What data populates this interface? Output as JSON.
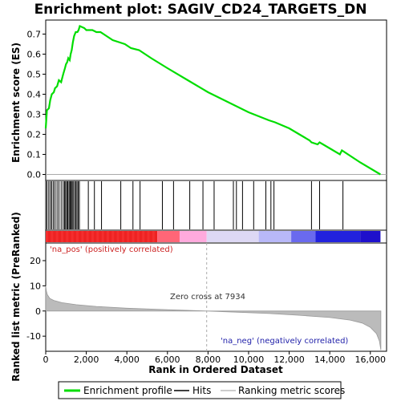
{
  "chart_data": [
    {
      "type": "line",
      "title": "Enrichment plot: SAGIV_CD24_TARGETS_DN",
      "ylabel": "Enrichment score (ES)",
      "ylim": [
        -0.03,
        0.77
      ],
      "yticks": [
        "0.0",
        "0.1",
        "0.2",
        "0.3",
        "0.4",
        "0.5",
        "0.6",
        "0.7"
      ],
      "series": [
        {
          "name": "Enrichment profile",
          "color": "#00dd00",
          "points": [
            [
              0,
              0.23
            ],
            [
              60,
              0.32
            ],
            [
              160,
              0.33
            ],
            [
              220,
              0.37
            ],
            [
              300,
              0.4
            ],
            [
              400,
              0.41
            ],
            [
              460,
              0.43
            ],
            [
              560,
              0.44
            ],
            [
              650,
              0.47
            ],
            [
              760,
              0.46
            ],
            [
              860,
              0.5
            ],
            [
              950,
              0.53
            ],
            [
              1000,
              0.55
            ],
            [
              1060,
              0.56
            ],
            [
              1110,
              0.58
            ],
            [
              1180,
              0.57
            ],
            [
              1230,
              0.6
            ],
            [
              1280,
              0.62
            ],
            [
              1340,
              0.66
            ],
            [
              1400,
              0.69
            ],
            [
              1480,
              0.71
            ],
            [
              1560,
              0.71
            ],
            [
              1620,
              0.72
            ],
            [
              1680,
              0.74
            ],
            [
              1900,
              0.73
            ],
            [
              2000,
              0.72
            ],
            [
              2150,
              0.72
            ],
            [
              2300,
              0.72
            ],
            [
              2500,
              0.71
            ],
            [
              2700,
              0.71
            ],
            [
              3000,
              0.69
            ],
            [
              3300,
              0.67
            ],
            [
              3600,
              0.66
            ],
            [
              3900,
              0.65
            ],
            [
              4200,
              0.63
            ],
            [
              4600,
              0.62
            ],
            [
              5200,
              0.58
            ],
            [
              6000,
              0.53
            ],
            [
              7000,
              0.47
            ],
            [
              8000,
              0.41
            ],
            [
              9000,
              0.36
            ],
            [
              10000,
              0.31
            ],
            [
              11000,
              0.27
            ],
            [
              11300,
              0.26
            ],
            [
              12000,
              0.23
            ],
            [
              12500,
              0.2
            ],
            [
              13000,
              0.17
            ],
            [
              13100,
              0.16
            ],
            [
              13400,
              0.15
            ],
            [
              13500,
              0.16
            ],
            [
              14000,
              0.13
            ],
            [
              14500,
              0.1
            ],
            [
              14600,
              0.12
            ],
            [
              15500,
              0.06
            ],
            [
              16500,
              0.0
            ]
          ]
        }
      ],
      "hits": [
        60,
        150,
        230,
        300,
        380,
        460,
        560,
        650,
        760,
        860,
        930,
        980,
        1040,
        1090,
        1150,
        1200,
        1250,
        1300,
        1350,
        1420,
        1480,
        1540,
        1600,
        1660,
        2100,
        2400,
        2750,
        3700,
        4300,
        4650,
        5750,
        6300,
        7100,
        7750,
        8300,
        9250,
        9400,
        9700,
        10250,
        10850,
        11100,
        11250,
        13100,
        13500,
        14650
      ]
    },
    {
      "type": "area",
      "ylabel": "Ranked list metric (PreRanked)",
      "xlabel": "Rank in Ordered Dataset",
      "xlim": [
        0,
        16800
      ],
      "ylim": [
        -16,
        27
      ],
      "yticks": [
        "20",
        "10",
        "0",
        "-10"
      ],
      "xticks": [
        "0",
        "2,000",
        "4,000",
        "6,000",
        "8,000",
        "10,000",
        "12,000",
        "14,000",
        "16,000"
      ],
      "metric_points": [
        [
          0,
          10
        ],
        [
          30,
          8
        ],
        [
          80,
          6.5
        ],
        [
          200,
          5
        ],
        [
          400,
          4.2
        ],
        [
          800,
          3.3
        ],
        [
          1500,
          2.5
        ],
        [
          2500,
          1.8
        ],
        [
          4000,
          1.1
        ],
        [
          6000,
          0.5
        ],
        [
          7934,
          0
        ],
        [
          9500,
          -0.5
        ],
        [
          11000,
          -1.0
        ],
        [
          12500,
          -1.7
        ],
        [
          14000,
          -2.6
        ],
        [
          15000,
          -3.6
        ],
        [
          15600,
          -4.8
        ],
        [
          16000,
          -6.5
        ],
        [
          16300,
          -9
        ],
        [
          16450,
          -12
        ],
        [
          16520,
          -15.5
        ]
      ],
      "zero_cross": 7934,
      "annotations": {
        "pos": "'na_pos' (positively correlated)",
        "neg": "'na_neg' (negatively correlated)",
        "zero": "Zero cross at 7934"
      },
      "heat_colors": [
        "#ee2222",
        "#ff6677",
        "#ffaadd",
        "#ddd8f4",
        "#b8b8f8",
        "#6a6aee",
        "#2222dd",
        "#1e10cc"
      ],
      "pos_color": "#ee3333",
      "neg_color": "#3333cc"
    }
  ],
  "legend": [
    {
      "label": "Enrichment profile",
      "color": "#00dd00"
    },
    {
      "label": "Hits",
      "color": "#000000"
    },
    {
      "label": "Ranking metric scores",
      "color": "#bbbbbb"
    }
  ]
}
